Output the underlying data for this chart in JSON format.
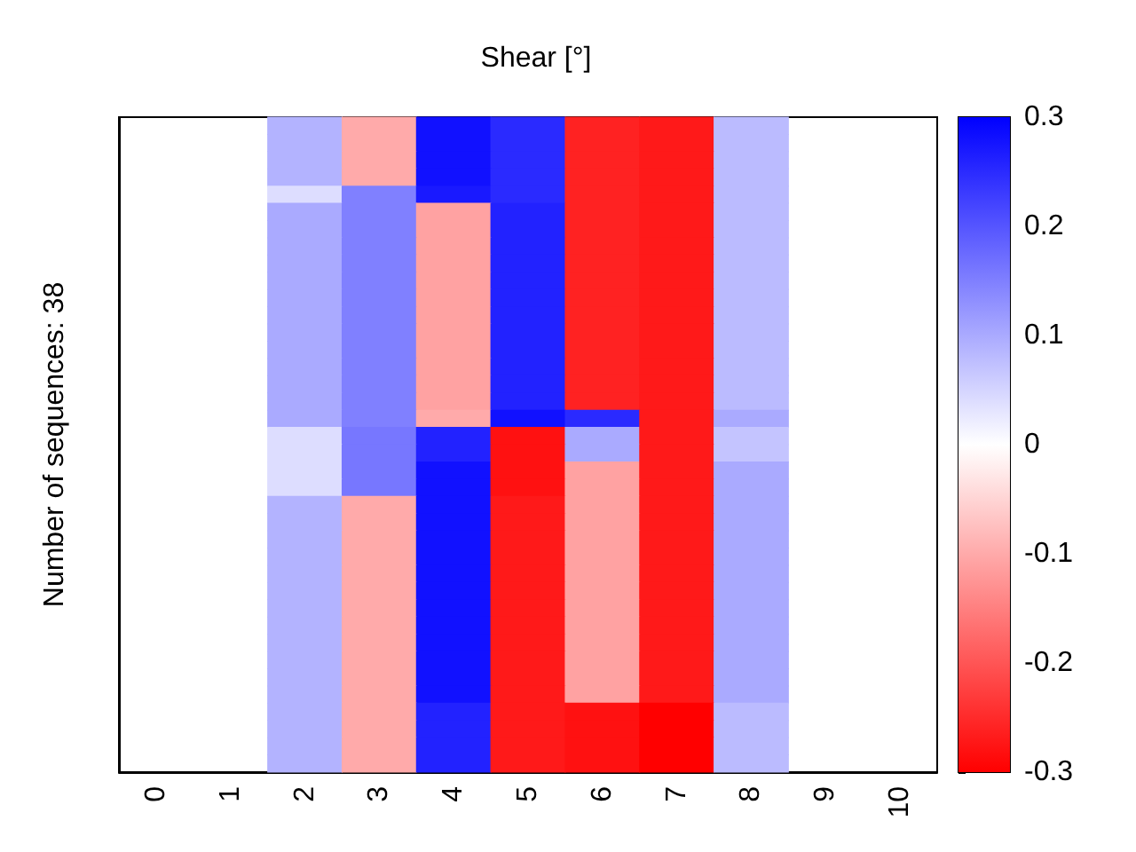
{
  "chart_data": {
    "type": "heatmap",
    "title": "Shear [°]",
    "ylabel": "Number of sequences: 38",
    "categories": [
      "0",
      "1",
      "2",
      "3",
      "4",
      "5",
      "6",
      "7",
      "8",
      "9",
      "10"
    ],
    "y_categories": [
      null,
      null,
      null,
      null,
      null,
      null,
      null,
      null,
      null,
      null,
      null,
      null,
      null,
      null,
      null,
      null,
      null,
      null,
      null,
      null,
      null,
      null,
      null,
      null,
      null,
      null,
      null,
      null,
      null,
      null,
      null,
      null,
      null,
      null,
      null,
      null,
      null,
      null
    ],
    "cells": [
      [
        null,
        null,
        0.09,
        -0.1,
        0.28,
        0.25,
        -0.26,
        -0.27,
        0.08,
        null,
        null
      ],
      [
        null,
        null,
        0.09,
        -0.1,
        0.28,
        0.25,
        -0.26,
        -0.27,
        0.08,
        null,
        null
      ],
      [
        null,
        null,
        0.09,
        -0.1,
        0.28,
        0.25,
        -0.26,
        -0.27,
        0.08,
        null,
        null
      ],
      [
        null,
        null,
        0.09,
        -0.1,
        0.28,
        0.25,
        -0.26,
        -0.27,
        0.08,
        null,
        null
      ],
      [
        null,
        null,
        0.04,
        0.15,
        0.27,
        0.25,
        -0.26,
        -0.27,
        0.08,
        null,
        null
      ],
      [
        null,
        null,
        0.1,
        0.15,
        -0.11,
        0.26,
        -0.26,
        -0.27,
        0.08,
        null,
        null
      ],
      [
        null,
        null,
        0.1,
        0.15,
        -0.11,
        0.26,
        -0.26,
        -0.27,
        0.08,
        null,
        null
      ],
      [
        null,
        null,
        0.1,
        0.15,
        -0.11,
        0.26,
        -0.26,
        -0.27,
        0.08,
        null,
        null
      ],
      [
        null,
        null,
        0.1,
        0.15,
        -0.11,
        0.26,
        -0.26,
        -0.27,
        0.08,
        null,
        null
      ],
      [
        null,
        null,
        0.1,
        0.15,
        -0.11,
        0.26,
        -0.26,
        -0.27,
        0.08,
        null,
        null
      ],
      [
        null,
        null,
        0.1,
        0.15,
        -0.11,
        0.26,
        -0.26,
        -0.27,
        0.08,
        null,
        null
      ],
      [
        null,
        null,
        0.1,
        0.15,
        -0.11,
        0.26,
        -0.26,
        -0.27,
        0.08,
        null,
        null
      ],
      [
        null,
        null,
        0.1,
        0.15,
        -0.11,
        0.26,
        -0.26,
        -0.27,
        0.08,
        null,
        null
      ],
      [
        null,
        null,
        0.1,
        0.15,
        -0.11,
        0.26,
        -0.26,
        -0.27,
        0.08,
        null,
        null
      ],
      [
        null,
        null,
        0.1,
        0.15,
        -0.11,
        0.26,
        -0.26,
        -0.27,
        0.08,
        null,
        null
      ],
      [
        null,
        null,
        0.1,
        0.15,
        -0.11,
        0.26,
        -0.26,
        -0.27,
        0.08,
        null,
        null
      ],
      [
        null,
        null,
        0.1,
        0.15,
        -0.11,
        0.26,
        -0.26,
        -0.27,
        0.08,
        null,
        null
      ],
      [
        null,
        null,
        0.1,
        0.15,
        -0.1,
        0.28,
        0.25,
        -0.27,
        0.1,
        null,
        null
      ],
      [
        null,
        null,
        0.04,
        0.16,
        0.26,
        -0.28,
        0.1,
        -0.27,
        0.07,
        null,
        null
      ],
      [
        null,
        null,
        0.04,
        0.16,
        0.26,
        -0.28,
        0.1,
        -0.27,
        0.07,
        null,
        null
      ],
      [
        null,
        null,
        0.04,
        0.16,
        0.28,
        -0.28,
        -0.11,
        -0.27,
        0.1,
        null,
        null
      ],
      [
        null,
        null,
        0.04,
        0.16,
        0.28,
        -0.28,
        -0.11,
        -0.27,
        0.1,
        null,
        null
      ],
      [
        null,
        null,
        0.09,
        -0.1,
        0.28,
        -0.27,
        -0.11,
        -0.27,
        0.1,
        null,
        null
      ],
      [
        null,
        null,
        0.09,
        -0.1,
        0.28,
        -0.27,
        -0.11,
        -0.27,
        0.1,
        null,
        null
      ],
      [
        null,
        null,
        0.09,
        -0.1,
        0.28,
        -0.27,
        -0.11,
        -0.27,
        0.1,
        null,
        null
      ],
      [
        null,
        null,
        0.09,
        -0.1,
        0.28,
        -0.27,
        -0.11,
        -0.27,
        0.1,
        null,
        null
      ],
      [
        null,
        null,
        0.09,
        -0.1,
        0.28,
        -0.27,
        -0.11,
        -0.27,
        0.1,
        null,
        null
      ],
      [
        null,
        null,
        0.09,
        -0.1,
        0.28,
        -0.27,
        -0.11,
        -0.27,
        0.1,
        null,
        null
      ],
      [
        null,
        null,
        0.09,
        -0.1,
        0.28,
        -0.27,
        -0.11,
        -0.27,
        0.1,
        null,
        null
      ],
      [
        null,
        null,
        0.09,
        -0.1,
        0.28,
        -0.27,
        -0.11,
        -0.27,
        0.1,
        null,
        null
      ],
      [
        null,
        null,
        0.09,
        -0.1,
        0.28,
        -0.27,
        -0.11,
        -0.27,
        0.1,
        null,
        null
      ],
      [
        null,
        null,
        0.09,
        -0.1,
        0.28,
        -0.27,
        -0.11,
        -0.27,
        0.1,
        null,
        null
      ],
      [
        null,
        null,
        0.09,
        -0.1,
        0.28,
        -0.27,
        -0.11,
        -0.27,
        0.1,
        null,
        null
      ],
      [
        null,
        null,
        0.09,
        -0.1,
        0.28,
        -0.27,
        -0.11,
        -0.27,
        0.1,
        null,
        null
      ],
      [
        null,
        null,
        0.09,
        -0.1,
        0.26,
        -0.27,
        -0.28,
        -0.3,
        0.08,
        null,
        null
      ],
      [
        null,
        null,
        0.09,
        -0.1,
        0.26,
        -0.27,
        -0.28,
        -0.3,
        0.08,
        null,
        null
      ],
      [
        null,
        null,
        0.09,
        -0.1,
        0.26,
        -0.27,
        -0.28,
        -0.3,
        0.08,
        null,
        null
      ],
      [
        null,
        null,
        0.09,
        -0.1,
        0.26,
        -0.27,
        -0.28,
        -0.3,
        0.08,
        null,
        null
      ]
    ],
    "clim": [
      -0.3,
      0.3
    ],
    "cticks": [
      -0.3,
      -0.2,
      -0.1,
      0,
      0.1,
      0.2,
      0.3
    ]
  }
}
